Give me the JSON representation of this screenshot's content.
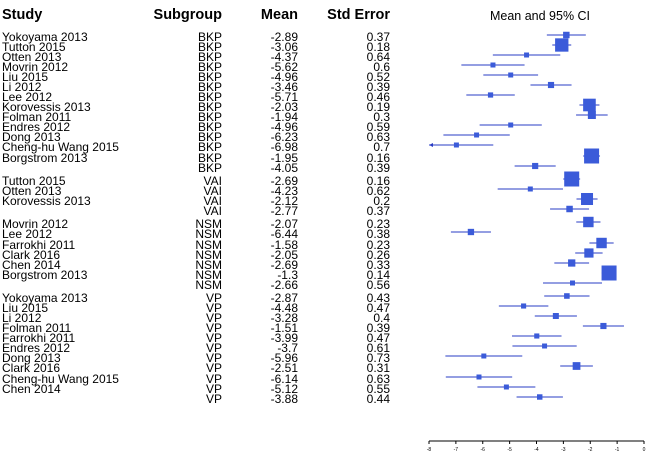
{
  "headers": {
    "study": "Study",
    "subgroup": "Subgroup",
    "mean": "Mean",
    "se": "Std Error"
  },
  "plot_title": "Mean and 95% CI",
  "chart_data": {
    "type": "forest",
    "title": "Mean and 95% CI",
    "xlim": [
      -8,
      0
    ],
    "xticks": [
      "-8",
      "-7",
      "-6",
      "-5",
      "-4",
      "-3",
      "-2",
      "-1",
      "0"
    ],
    "ci": "mean ± 1.96 × std error",
    "marker_size": "inverse-variance weight",
    "colors": {
      "line": "#2a3cc4",
      "box": "#3b5bd9"
    },
    "rows": [
      {
        "study": "Yokoyama 2013",
        "subgroup": "BKP",
        "mean": -2.89,
        "se": 0.37
      },
      {
        "study": "Tutton 2015",
        "subgroup": "BKP",
        "mean": -3.06,
        "se": 0.18
      },
      {
        "study": "Otten 2013",
        "subgroup": "BKP",
        "mean": -4.37,
        "se": 0.64
      },
      {
        "study": "Movrin 2012",
        "subgroup": "BKP",
        "mean": -5.62,
        "se": 0.6
      },
      {
        "study": "Liu 2015",
        "subgroup": "BKP",
        "mean": -4.96,
        "se": 0.52
      },
      {
        "study": "Li 2012",
        "subgroup": "BKP",
        "mean": -3.46,
        "se": 0.39
      },
      {
        "study": "Lee 2012",
        "subgroup": "BKP",
        "mean": -5.71,
        "se": 0.46
      },
      {
        "study": "Korovessis 2013",
        "subgroup": "BKP",
        "mean": -2.03,
        "se": 0.19
      },
      {
        "study": "Folman 2011",
        "subgroup": "BKP",
        "mean": -1.94,
        "se": 0.3
      },
      {
        "study": "Endres 2012",
        "subgroup": "BKP",
        "mean": -4.96,
        "se": 0.59
      },
      {
        "study": "Dong 2013",
        "subgroup": "BKP",
        "mean": -6.23,
        "se": 0.63
      },
      {
        "study": "Cheng-hu Wang 2015",
        "subgroup": "BKP",
        "mean": -6.98,
        "se": 0.7
      },
      {
        "study": "Borgstrom 2013",
        "subgroup": "BKP",
        "mean": -1.95,
        "se": 0.16
      },
      {
        "study": "",
        "subgroup": "BKP",
        "mean": -4.05,
        "se": 0.39
      },
      {
        "study": "Tutton 2015",
        "subgroup": "VAI",
        "mean": -2.69,
        "se": 0.16
      },
      {
        "study": "Otten 2013",
        "subgroup": "VAI",
        "mean": -4.23,
        "se": 0.62
      },
      {
        "study": "Korovessis 2013",
        "subgroup": "VAI",
        "mean": -2.12,
        "se": 0.2
      },
      {
        "study": "",
        "subgroup": "VAI",
        "mean": -2.77,
        "se": 0.37
      },
      {
        "study": "Movrin 2012",
        "subgroup": "NSM",
        "mean": -2.07,
        "se": 0.23
      },
      {
        "study": "Lee 2012",
        "subgroup": "NSM",
        "mean": -6.44,
        "se": 0.38
      },
      {
        "study": "Farrokhi 2011",
        "subgroup": "NSM",
        "mean": -1.58,
        "se": 0.23
      },
      {
        "study": "Clark 2016",
        "subgroup": "NSM",
        "mean": -2.05,
        "se": 0.26
      },
      {
        "study": "Chen 2014",
        "subgroup": "NSM",
        "mean": -2.69,
        "se": 0.33
      },
      {
        "study": "Borgstrom 2013",
        "subgroup": "NSM",
        "mean": -1.3,
        "se": 0.14
      },
      {
        "study": "",
        "subgroup": "NSM",
        "mean": -2.66,
        "se": 0.56
      },
      {
        "study": "Yokoyama 2013",
        "subgroup": "VP",
        "mean": -2.87,
        "se": 0.43
      },
      {
        "study": "Liu 2015",
        "subgroup": "VP",
        "mean": -4.48,
        "se": 0.47
      },
      {
        "study": "Li 2012",
        "subgroup": "VP",
        "mean": -3.28,
        "se": 0.4
      },
      {
        "study": "Folman 2011",
        "subgroup": "VP",
        "mean": -1.51,
        "se": 0.39
      },
      {
        "study": "Farrokhi 2011",
        "subgroup": "VP",
        "mean": -3.99,
        "se": 0.47
      },
      {
        "study": "Endres 2012",
        "subgroup": "VP",
        "mean": -3.7,
        "se": 0.61
      },
      {
        "study": "Dong 2013",
        "subgroup": "VP",
        "mean": -5.96,
        "se": 0.73
      },
      {
        "study": "Clark 2016",
        "subgroup": "VP",
        "mean": -2.51,
        "se": 0.31
      },
      {
        "study": "Cheng-hu Wang 2015",
        "subgroup": "VP",
        "mean": -6.14,
        "se": 0.63
      },
      {
        "study": "Chen 2014",
        "subgroup": "VP",
        "mean": -5.12,
        "se": 0.55
      },
      {
        "study": "",
        "subgroup": "VP",
        "mean": -3.88,
        "se": 0.44
      }
    ]
  }
}
